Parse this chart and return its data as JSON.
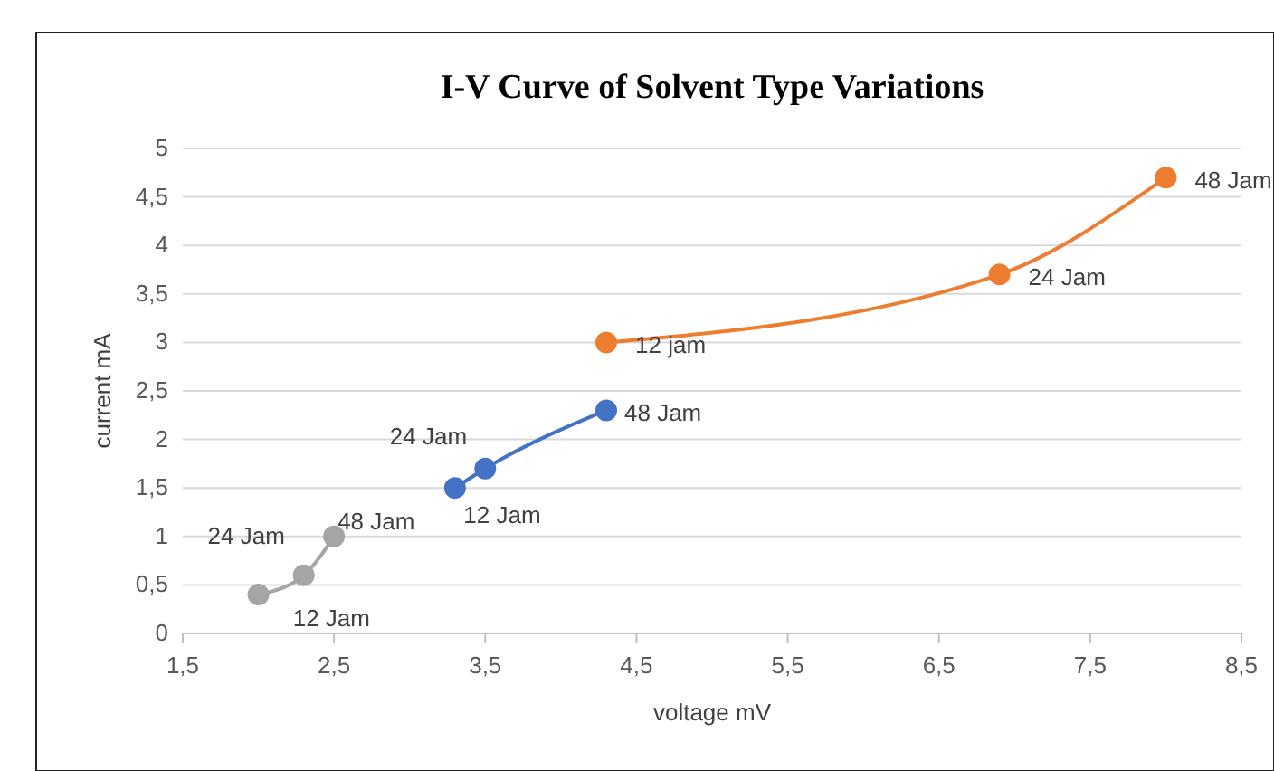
{
  "chart_data": {
    "type": "line",
    "title": "I-V Curve of Solvent Type Variations",
    "xlabel": "voltage mV",
    "ylabel": "current mA",
    "series": [
      {
        "color": "#a5a5a5",
        "x": [
          2.0,
          2.3,
          2.5
        ],
        "values": [
          0.4,
          0.6,
          1.0
        ]
      },
      {
        "color": "#4472c4",
        "x": [
          3.3,
          3.5,
          4.3
        ],
        "values": [
          1.5,
          1.7,
          2.3
        ]
      },
      {
        "color": "#ed7d31",
        "x": [
          4.3,
          6.9,
          8.0
        ],
        "values": [
          3.0,
          3.7,
          4.7
        ]
      }
    ],
    "xlim": [
      1.5,
      8.5
    ],
    "xticks": [
      {
        "value": 1.5,
        "label": "1,5"
      },
      {
        "value": 2.5,
        "label": "2,5"
      },
      {
        "value": 3.5,
        "label": "3,5"
      },
      {
        "value": 4.5,
        "label": "4,5"
      },
      {
        "value": 5.5,
        "label": "5,5"
      },
      {
        "value": 6.5,
        "label": "6,5"
      },
      {
        "value": 7.5,
        "label": "7,5"
      },
      {
        "value": 8.5,
        "label": "8,5"
      }
    ],
    "ylim": [
      0,
      5
    ],
    "yticks": [
      0,
      {
        "value": 0.5,
        "label": "0,5"
      },
      1,
      {
        "value": 1.5,
        "label": "1,5"
      },
      2,
      {
        "value": 2.5,
        "label": "2,5"
      },
      3,
      {
        "value": 3.5,
        "label": "3,5"
      },
      4,
      {
        "value": 4.5,
        "label": "4,5"
      },
      5
    ],
    "grid": "y",
    "marker": "circle",
    "annotations": [
      {
        "text": "24 Jam",
        "x": 2.0,
        "y": 0.4
      },
      {
        "text": "12 Jam",
        "x": 2.3,
        "y": 0.6
      },
      {
        "text": "48 Jam",
        "x": 2.5,
        "y": 1.0
      },
      {
        "text": "24 Jam",
        "x": 3.3,
        "y": 1.5
      },
      {
        "text": "12 Jam",
        "x": 3.5,
        "y": 1.7
      },
      {
        "text": "48 Jam",
        "x": 4.3,
        "y": 2.3
      },
      {
        "text": "12 jam",
        "x": 4.3,
        "y": 3.0
      },
      {
        "text": "24 Jam",
        "x": 6.9,
        "y": 3.7
      },
      {
        "text": "48 Jam",
        "x": 8.0,
        "y": 4.7
      }
    ]
  }
}
